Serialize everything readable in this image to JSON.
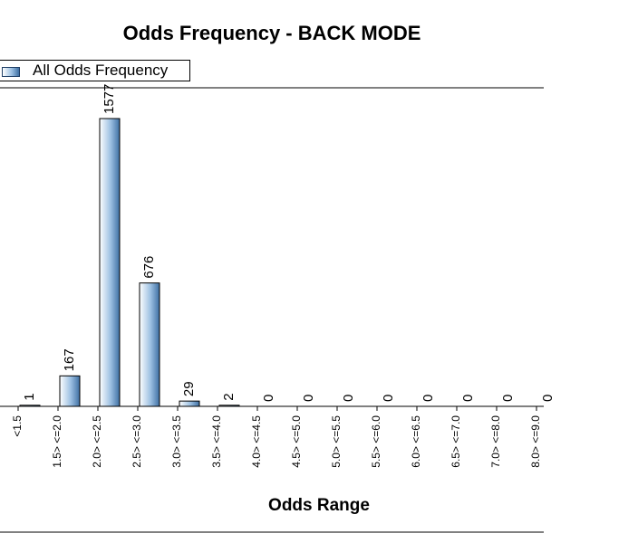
{
  "chart_data": {
    "type": "bar",
    "title": "Odds Frequency - BACK MODE",
    "xlabel": "Odds Range",
    "ylabel": "",
    "categories": [
      "<1.5",
      "1.5> <=2.0",
      "2.0> <=2.5",
      "2.5> <=3.0",
      "3.0> <=3.5",
      "3.5> <=4.0",
      "4.0> <=4.5",
      "4.5> <=5.0",
      "5.0> <=5.5",
      "5.5> <=6.0",
      "6.0> <=6.5",
      "6.5> <=7.0",
      "7.0> <=8.0",
      "8.0> <=9.0"
    ],
    "series": [
      {
        "name": "All Odds Frequency",
        "values": [
          1,
          167,
          1577,
          676,
          29,
          2,
          0,
          0,
          0,
          0,
          0,
          0,
          0,
          0
        ]
      }
    ],
    "ylim": [
      0,
      1600
    ],
    "legend_position": "top-left",
    "bar_color": "#3e6fa3"
  }
}
